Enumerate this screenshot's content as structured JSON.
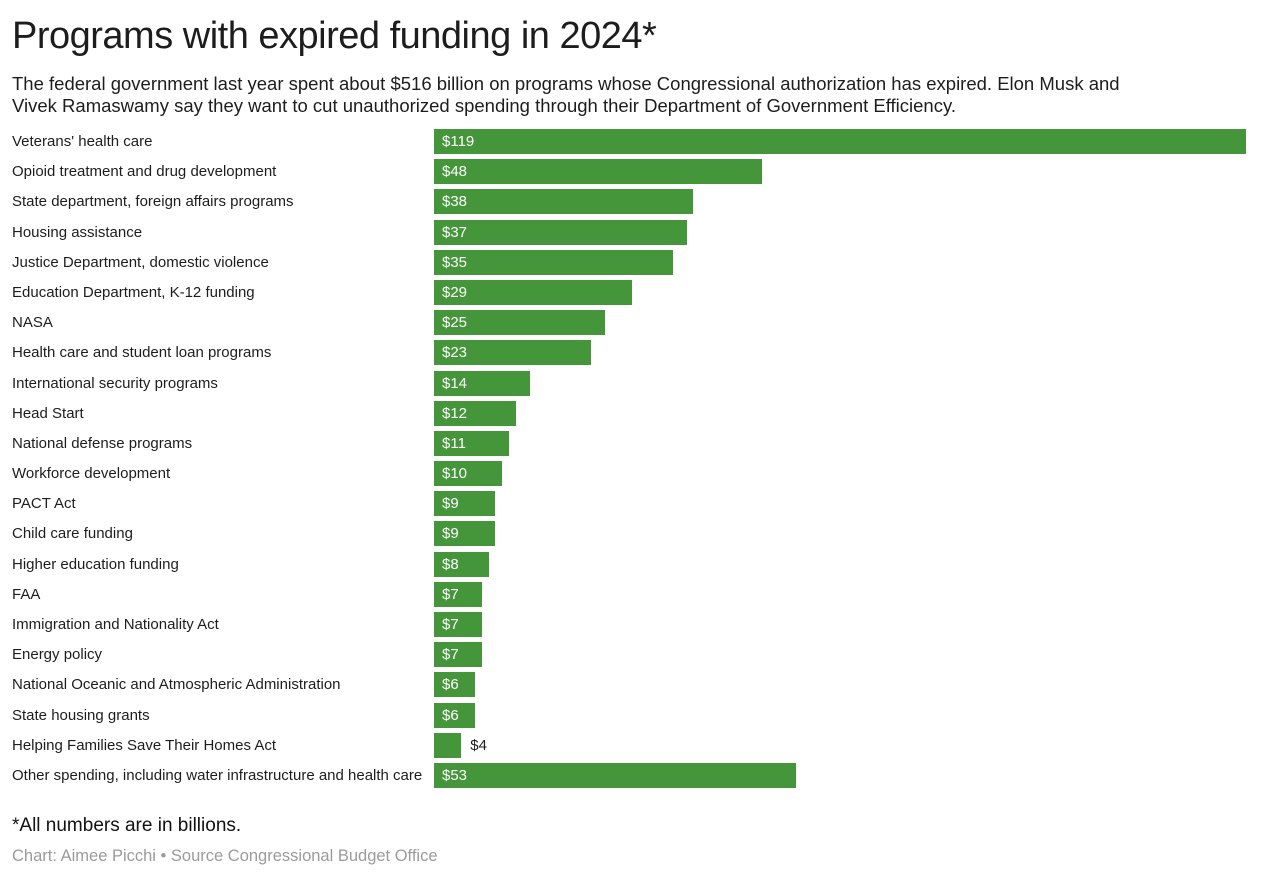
{
  "chart_data": {
    "type": "bar",
    "orientation": "horizontal",
    "title": "Programs with expired funding in 2024*",
    "subtitle": "The federal government last year spent about $516 billion on programs whose Congressional authorization has expired. Elon Musk and Vivek Ramaswamy say they want to cut unauthorized spending through their Department of Government Efficiency.",
    "subtitle_lines": [
      "The federal government last year spent about $516 billion on programs whose Congressional authorization has expired. Elon Musk and",
      "Vivek Ramaswamy say they want to cut unauthorized spending through their Department of Government Efficiency."
    ],
    "categories": [
      "Veterans' health care",
      "Opioid treatment and drug development",
      "State department, foreign affairs programs",
      "Housing assistance",
      "Justice Department, domestic violence",
      "Education Department, K-12 funding",
      "NASA",
      "Health care and student loan programs",
      "International security programs",
      "Head Start",
      "National defense programs",
      "Workforce development",
      "PACT Act",
      "Child care funding",
      "Higher education funding",
      "FAA",
      "Immigration and Nationality Act",
      "Energy policy",
      "National Oceanic and Atmospheric Administration",
      "State housing grants",
      "Helping Families Save Their Homes Act",
      "Other spending, including water infrastructure and health care"
    ],
    "values": [
      119,
      48,
      38,
      37,
      35,
      29,
      25,
      23,
      14,
      12,
      11,
      10,
      9,
      9,
      8,
      7,
      7,
      7,
      6,
      6,
      4,
      53
    ],
    "value_prefix": "$",
    "unit": "billions of dollars",
    "xlabel": "",
    "ylabel": "",
    "xlim": [
      0,
      119
    ],
    "grid": false,
    "legend": "none",
    "bar_color": "#45963b",
    "value_label_inside_color": "#ffffff",
    "value_label_outside_color": "#1d1d1d",
    "footnote": "*All numbers are in billions.",
    "credit": "Chart: Aimee Picchi • Source Congressional Budget Office"
  },
  "layout_hints": {
    "value_labels": "inside bar start, outside for shortest bar"
  }
}
